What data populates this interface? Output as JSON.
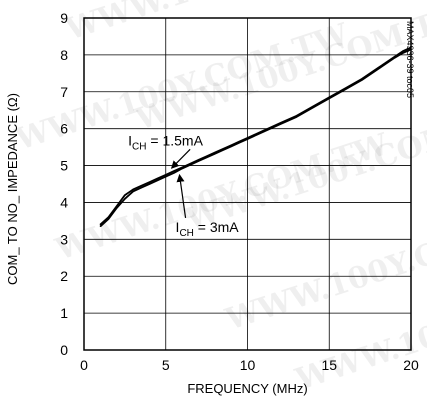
{
  "chart_data": {
    "type": "line",
    "title": "",
    "xlabel": "FREQUENCY (MHz)",
    "ylabel": "COM_ TO NO_ IMPEDANCE (Ω)",
    "xlim": [
      0,
      20
    ],
    "ylim": [
      0,
      9
    ],
    "x_ticks": [
      0,
      5,
      10,
      15,
      20
    ],
    "y_ticks": [
      0,
      1,
      2,
      3,
      4,
      5,
      6,
      7,
      8,
      9
    ],
    "grid": true,
    "figure_id": "MAX4936-39 toc05",
    "watermark": "WWW.100Y.COM.TW",
    "series": [
      {
        "label_main": "I",
        "label_sub": "CH",
        "label_value": " = 1.5mA",
        "x": [
          1.0,
          1.5,
          2.0,
          2.5,
          3.0,
          3.5,
          4.0,
          4.5,
          5.0,
          5.5,
          6.0,
          6.5,
          7.0,
          7.5,
          8.0,
          8.5,
          9.0,
          9.5,
          10.0,
          11.0,
          12.0,
          13.0,
          14.0,
          15.0,
          16.0,
          17.0,
          18.0,
          19.0,
          19.5,
          20.0
        ],
        "y": [
          3.4,
          3.6,
          3.9,
          4.2,
          4.35,
          4.45,
          4.55,
          4.65,
          4.75,
          4.85,
          4.95,
          5.05,
          5.15,
          5.25,
          5.35,
          5.45,
          5.55,
          5.65,
          5.75,
          5.95,
          6.15,
          6.35,
          6.6,
          6.85,
          7.1,
          7.35,
          7.65,
          7.95,
          8.1,
          8.2
        ]
      },
      {
        "label_main": "I",
        "label_sub": "CH",
        "label_value": " = 3mA",
        "x": [
          1.0,
          1.5,
          2.0,
          2.5,
          3.0,
          3.5,
          4.0,
          4.5,
          5.0,
          5.5,
          6.0,
          6.5,
          7.0,
          7.5,
          8.0,
          8.5,
          9.0,
          9.5,
          10.0,
          11.0,
          12.0,
          13.0,
          14.0,
          15.0,
          16.0,
          17.0,
          18.0,
          19.0,
          19.5,
          20.0
        ],
        "y": [
          3.35,
          3.55,
          3.85,
          4.1,
          4.3,
          4.4,
          4.5,
          4.6,
          4.7,
          4.8,
          4.92,
          5.02,
          5.12,
          5.22,
          5.32,
          5.42,
          5.52,
          5.62,
          5.72,
          5.92,
          6.12,
          6.32,
          6.57,
          6.82,
          7.07,
          7.32,
          7.62,
          7.92,
          8.05,
          8.15
        ]
      }
    ],
    "annotations": [
      {
        "series_index": 0,
        "point_x": 5.4,
        "point_y": 4.95,
        "text_x": 2.7,
        "text_y": 5.55
      },
      {
        "series_index": 1,
        "point_x": 5.85,
        "point_y": 4.72,
        "text_x": 5.6,
        "text_y": 3.2
      }
    ]
  }
}
